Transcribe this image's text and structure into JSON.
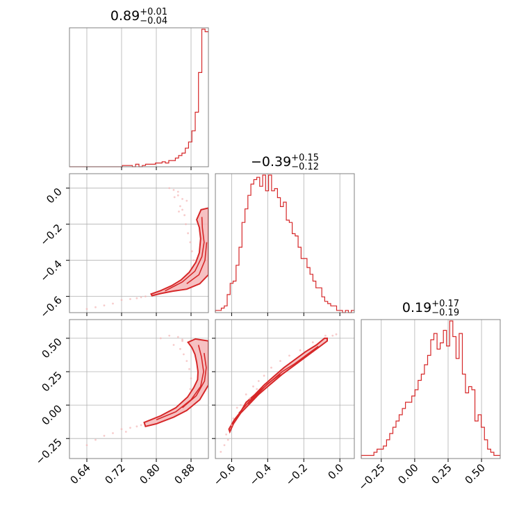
{
  "chart_data": {
    "type": "corner",
    "color": "#d62728",
    "fill_color": "#f4b6b7",
    "grid": true,
    "params": [
      {
        "title_value": "0.89",
        "title_plus": "+0.01",
        "title_minus": "−0.04",
        "range": [
          0.6,
          0.92
        ],
        "ticks": [
          0.64,
          0.72,
          0.8,
          0.88
        ],
        "tick_labels": [
          "0.64",
          "0.72",
          "0.80",
          "0.88"
        ],
        "hist": [
          0,
          0,
          0,
          0,
          0,
          0,
          0,
          0,
          0,
          0,
          0,
          0,
          0,
          0,
          0,
          0,
          1,
          1,
          1,
          0,
          2,
          0,
          1,
          2,
          2,
          2,
          3,
          3,
          4,
          3,
          5,
          5,
          7,
          9,
          11,
          15,
          20,
          29,
          44,
          76,
          111,
          109
        ]
      },
      {
        "title_value": "−0.39",
        "title_plus": "+0.15",
        "title_minus": "−0.12",
        "range": [
          -0.69,
          0.08
        ],
        "ticks": [
          -0.6,
          -0.4,
          -0.2,
          0.0
        ],
        "tick_labels": [
          "−0.6",
          "−0.4",
          "−0.2",
          "0.0"
        ],
        "hist": [
          1,
          1,
          2,
          3,
          8,
          13,
          14,
          21,
          29,
          40,
          46,
          52,
          57,
          59,
          60,
          56,
          61,
          54,
          61,
          54,
          55,
          51,
          47,
          49,
          41,
          40,
          35,
          34,
          29,
          24,
          24,
          20,
          17,
          14,
          11,
          11,
          7,
          5,
          4,
          3,
          3,
          1,
          1,
          0,
          1,
          0,
          1
        ]
      },
      {
        "title_value": "0.19",
        "title_plus": "+0.17",
        "title_minus": "−0.19",
        "range": [
          -0.4,
          0.64
        ],
        "ticks": [
          -0.25,
          0.0,
          0.25,
          0.5
        ],
        "tick_labels": [
          "−0.25",
          "0.00",
          "0.25",
          "0.50"
        ],
        "hist": [
          1,
          1,
          1,
          1,
          2,
          3,
          3,
          4,
          6,
          8,
          10,
          12,
          14,
          16,
          18,
          18,
          20,
          22,
          25,
          27,
          30,
          33,
          38,
          40,
          35,
          37,
          41,
          36,
          44,
          39,
          32,
          40,
          27,
          21,
          23,
          22,
          12,
          14,
          10,
          6,
          3,
          2,
          1,
          1
        ]
      }
    ],
    "pairs": [
      {
        "x_param": 0,
        "y_param": 1,
        "outer_contour": [
          [
            0.788,
            -0.587
          ],
          [
            0.81,
            -0.568
          ],
          [
            0.835,
            -0.541
          ],
          [
            0.857,
            -0.509
          ],
          [
            0.876,
            -0.466
          ],
          [
            0.891,
            -0.411
          ],
          [
            0.899,
            -0.358
          ],
          [
            0.902,
            -0.28
          ],
          [
            0.899,
            -0.218
          ],
          [
            0.893,
            -0.175
          ],
          [
            0.903,
            -0.12
          ],
          [
            0.92,
            -0.11
          ],
          [
            0.92,
            -0.32
          ],
          [
            0.92,
            -0.48
          ],
          [
            0.9,
            -0.53
          ],
          [
            0.87,
            -0.56
          ],
          [
            0.838,
            -0.571
          ],
          [
            0.81,
            -0.584
          ],
          [
            0.79,
            -0.596
          ]
        ],
        "inner_contours": [
          [
            [
              0.82,
              -0.57
            ],
            [
              0.86,
              -0.52
            ],
            [
              0.889,
              -0.46
            ],
            [
              0.905,
              -0.38
            ],
            [
              0.91,
              -0.3
            ],
            [
              0.906,
              -0.22
            ],
            [
              0.905,
              -0.16
            ]
          ],
          [
            [
              0.87,
              -0.53
            ],
            [
              0.898,
              -0.48
            ],
            [
              0.912,
              -0.4
            ],
            [
              0.916,
              -0.3
            ]
          ]
        ],
        "points": [
          [
            0.83,
            0.0
          ],
          [
            0.84,
            -0.01
          ],
          [
            0.85,
            -0.04
          ],
          [
            0.86,
            -0.06
          ],
          [
            0.87,
            -0.07
          ],
          [
            0.855,
            -0.1
          ],
          [
            0.86,
            -0.12
          ],
          [
            0.865,
            -0.15
          ],
          [
            0.852,
            -0.13
          ],
          [
            0.842,
            -0.05
          ],
          [
            0.868,
            -0.2
          ],
          [
            0.873,
            -0.25
          ],
          [
            0.878,
            -0.3
          ],
          [
            0.882,
            -0.35
          ],
          [
            0.886,
            -0.4
          ],
          [
            0.7,
            -0.64
          ],
          [
            0.72,
            -0.62
          ],
          [
            0.74,
            -0.615
          ],
          [
            0.755,
            -0.61
          ],
          [
            0.765,
            -0.605
          ],
          [
            0.68,
            -0.65
          ],
          [
            0.66,
            -0.66
          ],
          [
            0.64,
            -0.67
          ],
          [
            0.775,
            -0.6
          ],
          [
            0.85,
            -0.02
          ]
        ]
      },
      {
        "x_param": 0,
        "y_param": 2,
        "outer_contour": [
          [
            0.772,
            -0.13
          ],
          [
            0.81,
            -0.08
          ],
          [
            0.845,
            -0.02
          ],
          [
            0.872,
            0.06
          ],
          [
            0.886,
            0.13
          ],
          [
            0.895,
            0.19
          ],
          [
            0.896,
            0.25
          ],
          [
            0.893,
            0.32
          ],
          [
            0.889,
            0.38
          ],
          [
            0.882,
            0.43
          ],
          [
            0.873,
            0.47
          ],
          [
            0.89,
            0.495
          ],
          [
            0.92,
            0.48
          ],
          [
            0.92,
            0.35
          ],
          [
            0.92,
            0.15
          ],
          [
            0.9,
            0.04
          ],
          [
            0.87,
            -0.04
          ],
          [
            0.84,
            -0.09
          ],
          [
            0.8,
            -0.14
          ],
          [
            0.775,
            -0.16
          ]
        ],
        "inner_contours": [
          [
            [
              0.8,
              -0.11
            ],
            [
              0.845,
              -0.05
            ],
            [
              0.88,
              0.04
            ],
            [
              0.902,
              0.14
            ],
            [
              0.909,
              0.25
            ],
            [
              0.904,
              0.36
            ],
            [
              0.897,
              0.45
            ]
          ],
          [
            [
              0.86,
              -0.02
            ],
            [
              0.892,
              0.07
            ],
            [
              0.911,
              0.18
            ],
            [
              0.915,
              0.28
            ],
            [
              0.91,
              0.39
            ]
          ]
        ],
        "points": [
          [
            0.83,
            0.52
          ],
          [
            0.85,
            0.51
          ],
          [
            0.86,
            0.49
          ],
          [
            0.84,
            0.45
          ],
          [
            0.855,
            0.42
          ],
          [
            0.863,
            0.38
          ],
          [
            0.87,
            0.33
          ],
          [
            0.876,
            0.27
          ],
          [
            0.88,
            0.2
          ],
          [
            0.878,
            0.12
          ],
          [
            0.7,
            -0.21
          ],
          [
            0.72,
            -0.18
          ],
          [
            0.74,
            -0.17
          ],
          [
            0.755,
            -0.16
          ],
          [
            0.765,
            -0.15
          ],
          [
            0.68,
            -0.23
          ],
          [
            0.66,
            -0.26
          ],
          [
            0.64,
            -0.3
          ],
          [
            0.86,
            0.48
          ],
          [
            0.81,
            0.5
          ],
          [
            0.73,
            -0.2
          ]
        ]
      },
      {
        "x_param": 1,
        "y_param": 2,
        "outer_contour": [
          [
            -0.615,
            -0.18
          ],
          [
            -0.585,
            -0.11
          ],
          [
            -0.55,
            -0.05
          ],
          [
            -0.52,
            0.02
          ],
          [
            -0.47,
            0.08
          ],
          [
            -0.42,
            0.15
          ],
          [
            -0.37,
            0.21
          ],
          [
            -0.31,
            0.28
          ],
          [
            -0.25,
            0.34
          ],
          [
            -0.19,
            0.4
          ],
          [
            -0.13,
            0.45
          ],
          [
            -0.085,
            0.5
          ],
          [
            -0.07,
            0.5
          ],
          [
            -0.07,
            0.48
          ],
          [
            -0.12,
            0.43
          ],
          [
            -0.18,
            0.37
          ],
          [
            -0.25,
            0.3
          ],
          [
            -0.32,
            0.23
          ],
          [
            -0.39,
            0.15
          ],
          [
            -0.45,
            0.08
          ],
          [
            -0.5,
            0.01
          ],
          [
            -0.55,
            -0.06
          ],
          [
            -0.59,
            -0.14
          ],
          [
            -0.61,
            -0.2
          ]
        ],
        "inner_contours": [
          [
            [
              -0.56,
              -0.06
            ],
            [
              -0.5,
              0.03
            ],
            [
              -0.44,
              0.11
            ],
            [
              -0.38,
              0.18
            ],
            [
              -0.32,
              0.25
            ],
            [
              -0.25,
              0.31
            ],
            [
              -0.18,
              0.38
            ],
            [
              -0.12,
              0.44
            ]
          ],
          [
            [
              -0.51,
              0.01
            ],
            [
              -0.45,
              0.09
            ],
            [
              -0.4,
              0.16
            ],
            [
              -0.33,
              0.23
            ]
          ]
        ],
        "points": [
          [
            -0.66,
            -0.35
          ],
          [
            -0.64,
            -0.3
          ],
          [
            -0.62,
            -0.26
          ],
          [
            -0.63,
            -0.22
          ],
          [
            -0.59,
            -0.1
          ],
          [
            -0.55,
            0.0
          ],
          [
            -0.52,
            0.08
          ],
          [
            -0.48,
            0.14
          ],
          [
            -0.45,
            0.18
          ],
          [
            -0.42,
            0.22
          ],
          [
            -0.38,
            0.28
          ],
          [
            -0.33,
            0.33
          ],
          [
            -0.28,
            0.37
          ],
          [
            -0.22,
            0.41
          ],
          [
            -0.15,
            0.47
          ],
          [
            -0.08,
            0.52
          ],
          [
            -0.04,
            0.52
          ],
          [
            -0.02,
            0.53
          ],
          [
            -0.5,
            0.05
          ],
          [
            -0.46,
            0.12
          ],
          [
            -0.6,
            -0.15
          ],
          [
            -0.57,
            -0.02
          ]
        ]
      }
    ]
  }
}
